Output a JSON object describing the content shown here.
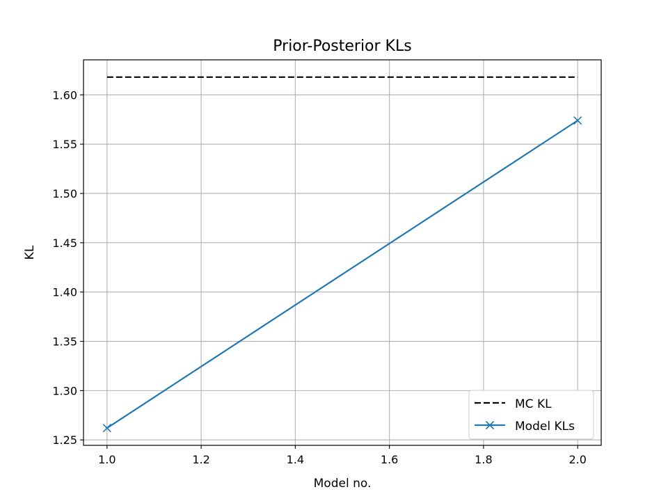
{
  "chart_data": {
    "type": "line",
    "title": "Prior-Posterior KLs",
    "xlabel": "Model no.",
    "ylabel": "KL",
    "xlim": [
      0.95,
      2.05
    ],
    "ylim": [
      1.2445,
      1.6355
    ],
    "xticks": [
      1.0,
      1.2,
      1.4,
      1.6,
      1.8,
      2.0
    ],
    "xtick_labels": [
      "1.0",
      "1.2",
      "1.4",
      "1.6",
      "1.8",
      "2.0"
    ],
    "yticks": [
      1.25,
      1.3,
      1.35,
      1.4,
      1.45,
      1.5,
      1.55,
      1.6
    ],
    "ytick_labels": [
      "1.25",
      "1.30",
      "1.35",
      "1.40",
      "1.45",
      "1.50",
      "1.55",
      "1.60"
    ],
    "grid": true,
    "legend_position": "lower-right",
    "series": [
      {
        "name": "MC KL",
        "x": [
          1.0,
          2.0
        ],
        "y": [
          1.618,
          1.618
        ],
        "color": "#000000",
        "linestyle": "dashed",
        "marker": "none"
      },
      {
        "name": "Model KLs",
        "x": [
          1.0,
          2.0
        ],
        "y": [
          1.262,
          1.574
        ],
        "color": "#1f77b4",
        "linestyle": "solid",
        "marker": "x"
      }
    ]
  }
}
